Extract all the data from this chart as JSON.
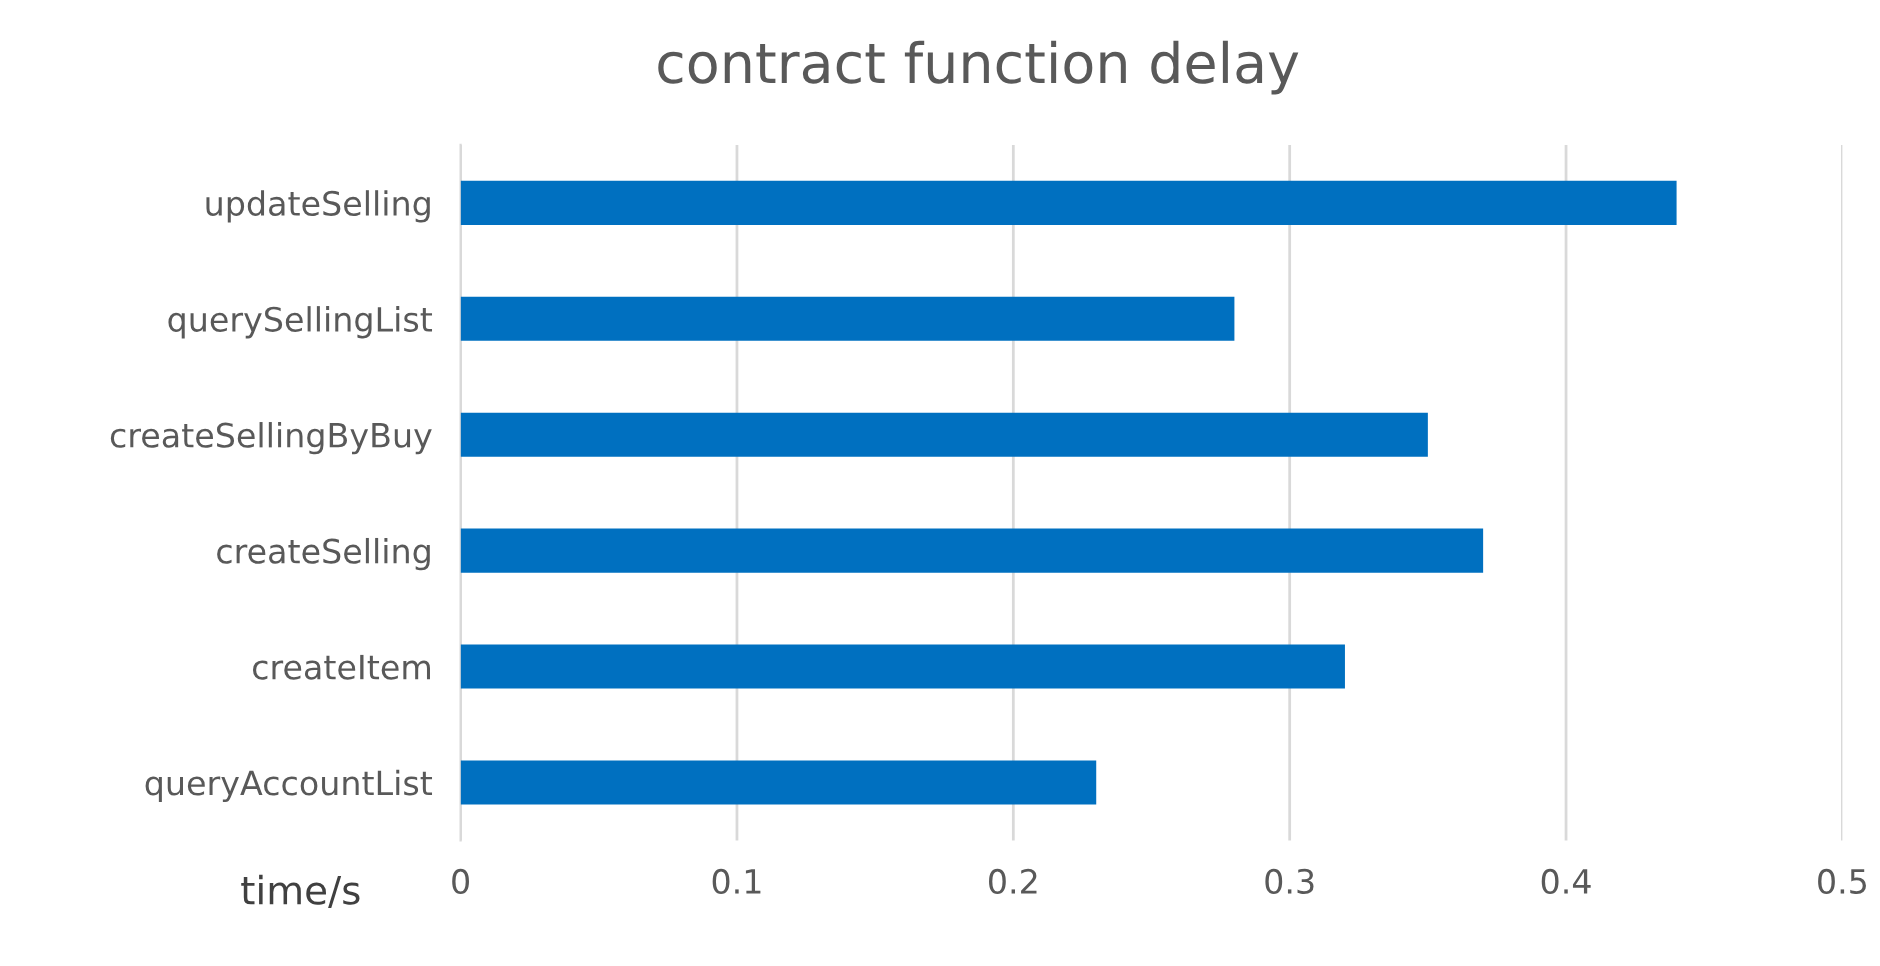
{
  "chart_data": {
    "type": "bar",
    "orientation": "horizontal",
    "title": "contract function delay",
    "xlabel": "time/s",
    "categories": [
      "updateSelling",
      "querySellingList",
      "createSellingByBuy",
      "createSelling",
      "createItem",
      "queryAccountList"
    ],
    "values": [
      0.44,
      0.28,
      0.35,
      0.37,
      0.32,
      0.23
    ],
    "color": "#0070c0",
    "xlim": [
      0,
      0.5
    ],
    "xticks": [
      0,
      0.1,
      0.2,
      0.3,
      0.4,
      0.5
    ],
    "grid": "x",
    "legend": false
  }
}
